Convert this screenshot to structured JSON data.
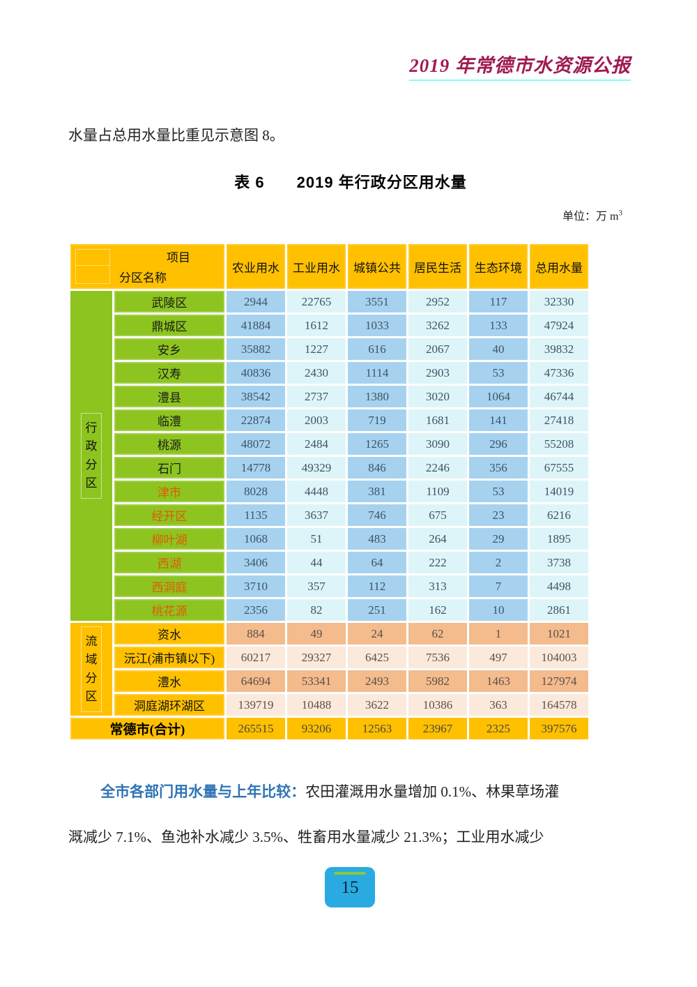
{
  "page": {
    "header_title": "2019 年常德市水资源公报",
    "intro_text": "水量占总用水量比重见示意图 8。",
    "table_title": "表 6　　2019 年行政分区用水量",
    "unit_label": "单位：万 m",
    "unit_superscript": "3",
    "page_number": "15"
  },
  "colors": {
    "header_amber": "#FFC000",
    "admin_green": "#8DC41F",
    "cell_blue": "#A6D2F0",
    "cell_cyan": "#DDF5F8",
    "cell_salmon": "#F4BB8D",
    "cell_peach": "#FBE9DC",
    "orange_label_text": "#E05A0A",
    "title_magenta": "#A01A52",
    "title_underline_cyan": "#80FFFF",
    "lead_blue": "#2E74B5",
    "pagebox_blue": "#29ABE2",
    "pagebox_green_bar": "#8CC63F"
  },
  "table": {
    "corner": {
      "top_label": "项目",
      "bottom_label": "分区名称"
    },
    "columns": [
      "农业用水",
      "工业用水",
      "城镇公共",
      "居民生活",
      "生态环境",
      "总用水量"
    ],
    "groups": [
      {
        "name": "行政分区",
        "theme": "green",
        "rows": [
          {
            "label": "武陵区",
            "label_color": "black",
            "values": [
              "2944",
              "22765",
              "3551",
              "2952",
              "117",
              "32330"
            ]
          },
          {
            "label": "鼎城区",
            "label_color": "black",
            "values": [
              "41884",
              "1612",
              "1033",
              "3262",
              "133",
              "47924"
            ]
          },
          {
            "label": "安乡",
            "label_color": "black",
            "values": [
              "35882",
              "1227",
              "616",
              "2067",
              "40",
              "39832"
            ]
          },
          {
            "label": "汉寿",
            "label_color": "black",
            "values": [
              "40836",
              "2430",
              "1114",
              "2903",
              "53",
              "47336"
            ]
          },
          {
            "label": "澧县",
            "label_color": "black",
            "values": [
              "38542",
              "2737",
              "1380",
              "3020",
              "1064",
              "46744"
            ]
          },
          {
            "label": "临澧",
            "label_color": "black",
            "values": [
              "22874",
              "2003",
              "719",
              "1681",
              "141",
              "27418"
            ]
          },
          {
            "label": "桃源",
            "label_color": "black",
            "values": [
              "48072",
              "2484",
              "1265",
              "3090",
              "296",
              "55208"
            ]
          },
          {
            "label": "石门",
            "label_color": "black",
            "values": [
              "14778",
              "49329",
              "846",
              "2246",
              "356",
              "67555"
            ]
          },
          {
            "label": "津市",
            "label_color": "orange",
            "values": [
              "8028",
              "4448",
              "381",
              "1109",
              "53",
              "14019"
            ]
          },
          {
            "label": "经开区",
            "label_color": "orange",
            "values": [
              "1135",
              "3637",
              "746",
              "675",
              "23",
              "6216"
            ]
          },
          {
            "label": "柳叶湖",
            "label_color": "orange",
            "values": [
              "1068",
              "51",
              "483",
              "264",
              "29",
              "1895"
            ]
          },
          {
            "label": "西湖",
            "label_color": "orange",
            "values": [
              "3406",
              "44",
              "64",
              "222",
              "2",
              "3738"
            ]
          },
          {
            "label": "西洞庭",
            "label_color": "orange",
            "values": [
              "3710",
              "357",
              "112",
              "313",
              "7",
              "4498"
            ]
          },
          {
            "label": "桃花源",
            "label_color": "orange",
            "values": [
              "2356",
              "82",
              "251",
              "162",
              "10",
              "2861"
            ]
          }
        ]
      },
      {
        "name": "流域分区",
        "theme": "orange",
        "rows": [
          {
            "label": "资水",
            "label_color": "black",
            "values": [
              "884",
              "49",
              "24",
              "62",
              "1",
              "1021"
            ]
          },
          {
            "label": "沅江(浦市镇以下)",
            "label_color": "black",
            "values": [
              "60217",
              "29327",
              "6425",
              "7536",
              "497",
              "104003"
            ]
          },
          {
            "label": "澧水",
            "label_color": "black",
            "values": [
              "64694",
              "53341",
              "2493",
              "5982",
              "1463",
              "127974"
            ]
          },
          {
            "label": "洞庭湖环湖区",
            "label_color": "black",
            "values": [
              "139719",
              "10488",
              "3622",
              "10386",
              "363",
              "164578"
            ]
          }
        ]
      }
    ],
    "total_row": {
      "label": "常德市(合计)",
      "values": [
        "265515",
        "93206",
        "12563",
        "23967",
        "2325",
        "397576"
      ]
    }
  },
  "paragraph": {
    "lead": "全市各部门用水量与上年比较：",
    "body_line1": "农田灌溉用水量增加 0.1%、林果草场灌",
    "body_line2": "溉减少 7.1%、鱼池补水减少 3.5%、牲畜用水量减少 21.3%；工业用水减少"
  }
}
